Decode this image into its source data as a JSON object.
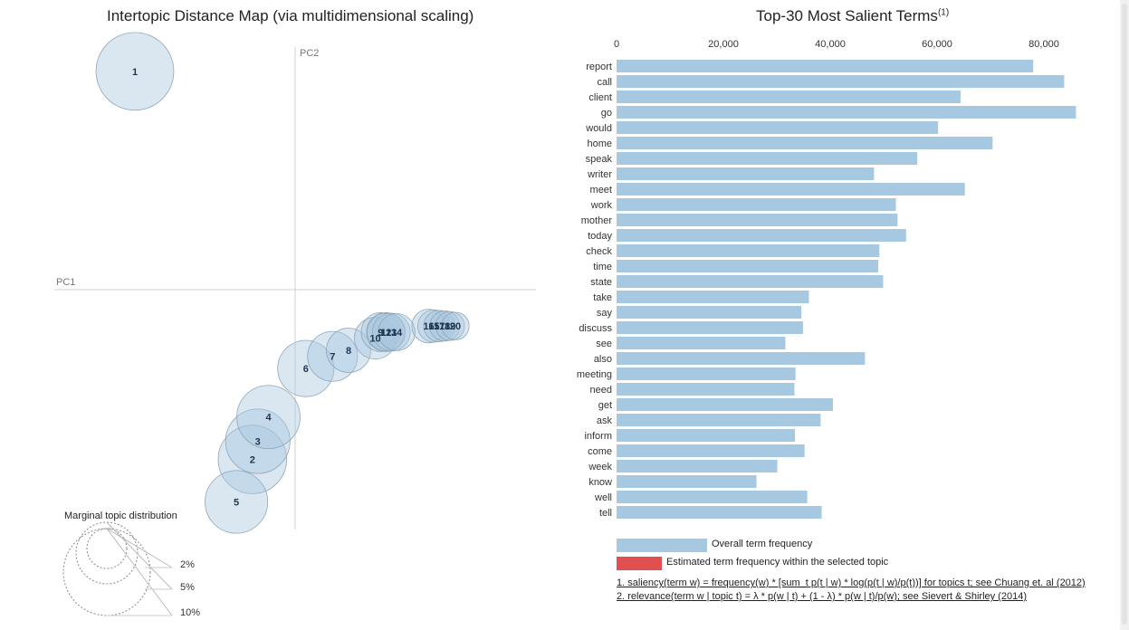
{
  "left_panel": {
    "title": "Intertopic Distance Map (via multidimensional scaling)",
    "axis_pc1": "PC1",
    "axis_pc2": "PC2",
    "marginal_title": "Marginal topic distribution",
    "marginal_labels": [
      "2%",
      "5%",
      "10%"
    ]
  },
  "right_panel": {
    "title": "Top-30 Most Salient Terms",
    "title_sup": "(1)",
    "legend_overall": "Overall term frequency",
    "legend_estimated": "Estimated term frequency within the selected topic",
    "footnote1": "1. saliency(term w) = frequency(w) * [sum_t p(t | w) * log(p(t | w)/p(t))] for topics t; see Chuang et. al (2012)",
    "footnote2": "2. relevance(term w | topic t) = λ * p(w | t) + (1 - λ) * p(w | t)/p(w); see Sievert & Shirley (2014)"
  },
  "colors": {
    "bar": "#a6c8e0",
    "bar_selected": "#e05050",
    "circle_fill": "#a7c6de",
    "circle_stroke": "#8fa7b9",
    "label": "#1f3550"
  },
  "chart_data": [
    {
      "type": "scatter",
      "title": "Intertopic Distance Map (via multidimensional scaling)",
      "xlabel": "PC1",
      "ylabel": "PC2",
      "topics": [
        {
          "id": "1",
          "x": -0.3,
          "y": 0.36,
          "size_pct": 8.0
        },
        {
          "id": "2",
          "x": -0.08,
          "y": -0.28,
          "size_pct": 6.2
        },
        {
          "id": "3",
          "x": -0.07,
          "y": -0.25,
          "size_pct": 5.5
        },
        {
          "id": "4",
          "x": -0.05,
          "y": -0.21,
          "size_pct": 5.3
        },
        {
          "id": "5",
          "x": -0.11,
          "y": -0.35,
          "size_pct": 5.2
        },
        {
          "id": "6",
          "x": 0.02,
          "y": -0.13,
          "size_pct": 4.2
        },
        {
          "id": "7",
          "x": 0.07,
          "y": -0.11,
          "size_pct": 3.3
        },
        {
          "id": "8",
          "x": 0.1,
          "y": -0.1,
          "size_pct": 2.6
        },
        {
          "id": "10",
          "x": 0.15,
          "y": -0.08,
          "size_pct": 2.3
        },
        {
          "id": "9",
          "x": 0.16,
          "y": -0.07,
          "size_pct": 2.0
        },
        {
          "id": "11",
          "x": 0.17,
          "y": -0.07,
          "size_pct": 2.0
        },
        {
          "id": "12",
          "x": 0.17,
          "y": -0.07,
          "size_pct": 1.9
        },
        {
          "id": "13",
          "x": 0.18,
          "y": -0.07,
          "size_pct": 1.9
        },
        {
          "id": "14",
          "x": 0.19,
          "y": -0.07,
          "size_pct": 1.8
        },
        {
          "id": "16",
          "x": 0.25,
          "y": -0.06,
          "size_pct": 1.5
        },
        {
          "id": "15",
          "x": 0.26,
          "y": -0.06,
          "size_pct": 1.4
        },
        {
          "id": "17",
          "x": 0.27,
          "y": -0.06,
          "size_pct": 1.3
        },
        {
          "id": "18",
          "x": 0.28,
          "y": -0.06,
          "size_pct": 1.2
        },
        {
          "id": "19",
          "x": 0.29,
          "y": -0.06,
          "size_pct": 1.1
        },
        {
          "id": "20",
          "x": 0.3,
          "y": -0.06,
          "size_pct": 1.0
        }
      ]
    },
    {
      "type": "bar",
      "orientation": "horizontal",
      "title": "Top-30 Most Salient Terms",
      "categories": [
        "report",
        "call",
        "client",
        "go",
        "would",
        "home",
        "speak",
        "writer",
        "meet",
        "work",
        "mother",
        "today",
        "check",
        "time",
        "state",
        "take",
        "say",
        "discuss",
        "see",
        "also",
        "meeting",
        "need",
        "get",
        "ask",
        "inform",
        "come",
        "week",
        "know",
        "well",
        "tell"
      ],
      "values": [
        78000,
        83800,
        64400,
        86000,
        60200,
        70400,
        56300,
        48200,
        65200,
        52300,
        52600,
        54200,
        49200,
        49000,
        49900,
        36000,
        34600,
        34900,
        31600,
        46500,
        33500,
        33300,
        40500,
        38200,
        33400,
        35200,
        30100,
        26200,
        35700,
        38400
      ],
      "series": [
        {
          "name": "Overall term frequency"
        }
      ],
      "xlim": [
        0,
        88000
      ],
      "xticks": [
        "0",
        "20,000",
        "40,000",
        "60,000",
        "80,000"
      ],
      "xtick_values": [
        0,
        20000,
        40000,
        60000,
        80000
      ],
      "grid": false
    }
  ]
}
